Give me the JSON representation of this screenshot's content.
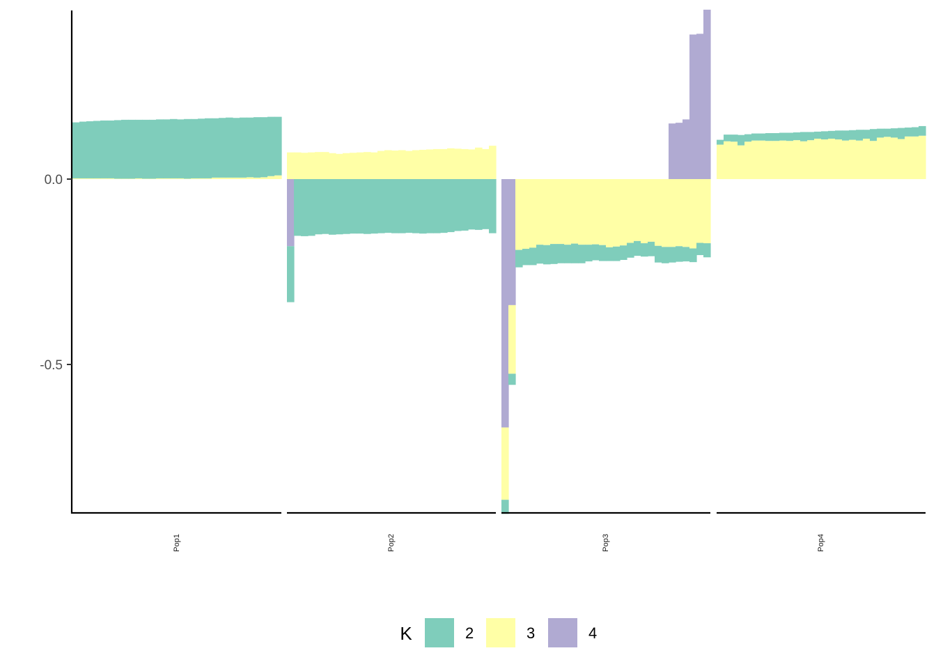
{
  "chart_data": {
    "type": "bar",
    "stacked": true,
    "diverging": true,
    "facets": [
      "Pop1",
      "Pop2",
      "Pop3",
      "Pop4"
    ],
    "y_ticks": [
      {
        "value": 0.0,
        "label": "0.0"
      },
      {
        "value": -0.5,
        "label": "-0.5"
      }
    ],
    "ylim": [
      -0.9,
      0.46
    ],
    "legend": {
      "title": "K",
      "position": "bottom",
      "items": [
        {
          "key": "2",
          "label": "2",
          "color": "#7fcdbb"
        },
        {
          "key": "3",
          "label": "3",
          "color": "#ffffa6"
        },
        {
          "key": "4",
          "label": "4",
          "color": "#b0aad2"
        }
      ]
    },
    "panels": [
      {
        "name": "Pop1",
        "bars": [
          {
            "k2": 0.151,
            "k3": 0.002
          },
          {
            "k2": 0.153,
            "k3": 0.002
          },
          {
            "k2": 0.154,
            "k3": 0.002
          },
          {
            "k2": 0.155,
            "k3": 0.002
          },
          {
            "k2": 0.156,
            "k3": 0.002
          },
          {
            "k2": 0.156,
            "k3": 0.002
          },
          {
            "k2": 0.158,
            "k3": 0.001
          },
          {
            "k2": 0.159,
            "k3": 0.001
          },
          {
            "k2": 0.159,
            "k3": 0.001
          },
          {
            "k2": 0.158,
            "k3": 0.002
          },
          {
            "k2": 0.159,
            "k3": 0.001
          },
          {
            "k2": 0.159,
            "k3": 0.001
          },
          {
            "k2": 0.159,
            "k3": 0.002
          },
          {
            "k2": 0.159,
            "k3": 0.002
          },
          {
            "k2": 0.16,
            "k3": 0.002
          },
          {
            "k2": 0.159,
            "k3": 0.002
          },
          {
            "k2": 0.161,
            "k3": 0.001
          },
          {
            "k2": 0.16,
            "k3": 0.002
          },
          {
            "k2": 0.161,
            "k3": 0.002
          },
          {
            "k2": 0.162,
            "k3": 0.002
          },
          {
            "k2": 0.16,
            "k3": 0.004
          },
          {
            "k2": 0.161,
            "k3": 0.004
          },
          {
            "k2": 0.162,
            "k3": 0.004
          },
          {
            "k2": 0.161,
            "k3": 0.004
          },
          {
            "k2": 0.162,
            "k3": 0.004
          },
          {
            "k2": 0.161,
            "k3": 0.005
          },
          {
            "k2": 0.163,
            "k3": 0.004
          },
          {
            "k2": 0.162,
            "k3": 0.005
          },
          {
            "k2": 0.16,
            "k3": 0.008
          },
          {
            "k2": 0.158,
            "k3": 0.01
          }
        ]
      },
      {
        "name": "Pop2",
        "bars": [
          {
            "k3": 0.072,
            "k4": -0.181,
            "k2": -0.151
          },
          {
            "k3": 0.072,
            "k2": -0.153
          },
          {
            "k3": 0.071,
            "k2": -0.154
          },
          {
            "k3": 0.072,
            "k2": -0.153
          },
          {
            "k3": 0.073,
            "k2": -0.149
          },
          {
            "k3": 0.073,
            "k2": -0.148
          },
          {
            "k3": 0.07,
            "k2": -0.15
          },
          {
            "k3": 0.068,
            "k2": -0.149
          },
          {
            "k3": 0.07,
            "k2": -0.148
          },
          {
            "k3": 0.071,
            "k2": -0.147
          },
          {
            "k3": 0.072,
            "k2": -0.147
          },
          {
            "k3": 0.073,
            "k2": -0.148
          },
          {
            "k3": 0.072,
            "k2": -0.147
          },
          {
            "k3": 0.076,
            "k2": -0.146
          },
          {
            "k3": 0.078,
            "k2": -0.145
          },
          {
            "k3": 0.077,
            "k2": -0.146
          },
          {
            "k3": 0.078,
            "k2": -0.146
          },
          {
            "k3": 0.076,
            "k2": -0.145
          },
          {
            "k3": 0.078,
            "k2": -0.146
          },
          {
            "k3": 0.079,
            "k2": -0.147
          },
          {
            "k3": 0.08,
            "k2": -0.146
          },
          {
            "k3": 0.081,
            "k2": -0.146
          },
          {
            "k3": 0.081,
            "k2": -0.145
          },
          {
            "k3": 0.083,
            "k2": -0.143
          },
          {
            "k3": 0.082,
            "k2": -0.14
          },
          {
            "k3": 0.081,
            "k2": -0.139
          },
          {
            "k3": 0.08,
            "k2": -0.136
          },
          {
            "k3": 0.085,
            "k2": -0.137
          },
          {
            "k3": 0.081,
            "k2": -0.135
          },
          {
            "k3": 0.09,
            "k2": -0.146
          }
        ]
      },
      {
        "name": "Pop3",
        "bars": [
          {
            "k4": -0.67,
            "k3": -0.195,
            "k2": -0.038
          },
          {
            "k4": -0.34,
            "k3": -0.185,
            "k2": -0.03
          },
          {
            "k3": -0.191,
            "k2": -0.047
          },
          {
            "k3": -0.188,
            "k2": -0.044
          },
          {
            "k3": -0.185,
            "k2": -0.047
          },
          {
            "k3": -0.177,
            "k2": -0.051
          },
          {
            "k3": -0.178,
            "k2": -0.052
          },
          {
            "k3": -0.175,
            "k2": -0.054
          },
          {
            "k3": -0.175,
            "k2": -0.052
          },
          {
            "k3": -0.177,
            "k2": -0.05
          },
          {
            "k3": -0.174,
            "k2": -0.053
          },
          {
            "k3": -0.177,
            "k2": -0.05
          },
          {
            "k3": -0.177,
            "k2": -0.045
          },
          {
            "k3": -0.176,
            "k2": -0.043
          },
          {
            "k3": -0.178,
            "k2": -0.043
          },
          {
            "k3": -0.184,
            "k2": -0.037
          },
          {
            "k3": -0.182,
            "k2": -0.039
          },
          {
            "k3": -0.179,
            "k2": -0.039
          },
          {
            "k3": -0.172,
            "k2": -0.04
          },
          {
            "k3": -0.167,
            "k2": -0.04
          },
          {
            "k3": -0.173,
            "k2": -0.036
          },
          {
            "k3": -0.169,
            "k2": -0.039
          },
          {
            "k3": -0.18,
            "k2": -0.045
          },
          {
            "k3": -0.183,
            "k2": -0.044
          },
          {
            "k4": 0.15,
            "k3": -0.183,
            "k2": -0.042
          },
          {
            "k4": 0.152,
            "k3": -0.181,
            "k2": -0.042
          },
          {
            "k4": 0.161,
            "k3": -0.183,
            "k2": -0.039
          },
          {
            "k4": 0.39,
            "k3": -0.187,
            "k2": -0.037
          },
          {
            "k4": 0.392,
            "k3": -0.172,
            "k2": -0.033
          },
          {
            "k4": 0.457,
            "k3": -0.173,
            "k2": -0.038
          }
        ]
      },
      {
        "name": "Pop4",
        "bars": [
          {
            "k3": 0.093,
            "k2": 0.013
          },
          {
            "k3": 0.102,
            "k2": 0.018
          },
          {
            "k3": 0.101,
            "k2": 0.019
          },
          {
            "k3": 0.091,
            "k2": 0.028
          },
          {
            "k3": 0.101,
            "k2": 0.02
          },
          {
            "k3": 0.104,
            "k2": 0.019
          },
          {
            "k3": 0.104,
            "k2": 0.019
          },
          {
            "k3": 0.103,
            "k2": 0.021
          },
          {
            "k3": 0.103,
            "k2": 0.021
          },
          {
            "k3": 0.104,
            "k2": 0.021
          },
          {
            "k3": 0.103,
            "k2": 0.022
          },
          {
            "k3": 0.105,
            "k2": 0.021
          },
          {
            "k3": 0.102,
            "k2": 0.025
          },
          {
            "k3": 0.105,
            "k2": 0.022
          },
          {
            "k3": 0.109,
            "k2": 0.019
          },
          {
            "k3": 0.107,
            "k2": 0.022
          },
          {
            "k3": 0.109,
            "k2": 0.021
          },
          {
            "k3": 0.107,
            "k2": 0.024
          },
          {
            "k3": 0.104,
            "k2": 0.027
          },
          {
            "k3": 0.106,
            "k2": 0.026
          },
          {
            "k3": 0.104,
            "k2": 0.029
          },
          {
            "k3": 0.109,
            "k2": 0.024
          },
          {
            "k3": 0.103,
            "k2": 0.032
          },
          {
            "k3": 0.112,
            "k2": 0.024
          },
          {
            "k3": 0.114,
            "k2": 0.022
          },
          {
            "k3": 0.112,
            "k2": 0.025
          },
          {
            "k3": 0.108,
            "k2": 0.03
          },
          {
            "k3": 0.115,
            "k2": 0.024
          },
          {
            "k3": 0.115,
            "k2": 0.025
          },
          {
            "k3": 0.117,
            "k2": 0.026
          }
        ]
      }
    ]
  }
}
